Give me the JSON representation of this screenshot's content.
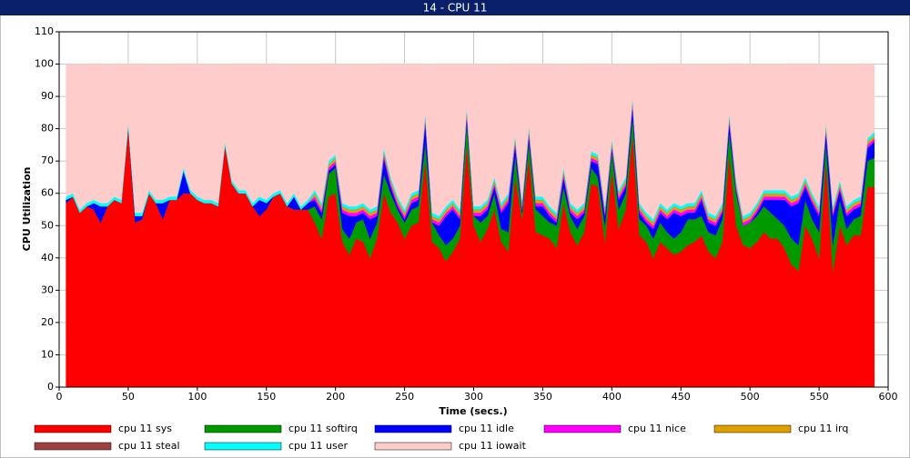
{
  "chart_data": {
    "type": "stacked_area",
    "title": "14 - CPU 11",
    "xlabel": "Time (secs.)",
    "ylabel": "CPU Utilization",
    "xlim": [
      0,
      600
    ],
    "ylim": [
      0,
      110
    ],
    "xticks": [
      0,
      50,
      100,
      150,
      200,
      250,
      300,
      350,
      400,
      450,
      500,
      550,
      600
    ],
    "yticks": [
      0,
      10,
      20,
      30,
      40,
      50,
      60,
      70,
      80,
      90,
      100,
      110
    ],
    "grid": true,
    "legend": "bottom",
    "x": [
      5,
      10,
      15,
      20,
      25,
      30,
      35,
      40,
      45,
      50,
      55,
      60,
      65,
      70,
      75,
      80,
      85,
      90,
      95,
      100,
      105,
      110,
      115,
      120,
      125,
      130,
      135,
      140,
      145,
      150,
      155,
      160,
      165,
      170,
      175,
      180,
      185,
      190,
      195,
      200,
      205,
      210,
      215,
      220,
      225,
      230,
      235,
      240,
      245,
      250,
      255,
      260,
      265,
      270,
      275,
      280,
      285,
      290,
      295,
      300,
      305,
      310,
      315,
      320,
      325,
      330,
      335,
      340,
      345,
      350,
      355,
      360,
      365,
      370,
      375,
      380,
      385,
      390,
      395,
      400,
      405,
      410,
      415,
      420,
      425,
      430,
      435,
      440,
      445,
      450,
      455,
      460,
      465,
      470,
      475,
      480,
      485,
      490,
      495,
      500,
      505,
      510,
      515,
      520,
      525,
      530,
      535,
      540,
      545,
      550,
      555,
      560,
      565,
      570,
      575,
      580,
      585,
      590
    ],
    "series": [
      {
        "name": "cpu 11 sys",
        "color": "#ff0000",
        "values": [
          57,
          59,
          54,
          56,
          55,
          51,
          56,
          58,
          57,
          80,
          51,
          52,
          60,
          57,
          52,
          58,
          58,
          60,
          60,
          58,
          57,
          57,
          56,
          75,
          63,
          60,
          60,
          56,
          53,
          55,
          59,
          60,
          56,
          55,
          55,
          55,
          51,
          46,
          59,
          60,
          45,
          41,
          46,
          45,
          40,
          46,
          60,
          54,
          51,
          46,
          50,
          51,
          70,
          45,
          43,
          39,
          42,
          46,
          75,
          50,
          45,
          49,
          55,
          45,
          42,
          65,
          52,
          71,
          48,
          47,
          46,
          43,
          57,
          48,
          44,
          48,
          63,
          62,
          45,
          67,
          49,
          55,
          78,
          47,
          45,
          40,
          45,
          43,
          41,
          42,
          44,
          45,
          47,
          42,
          40,
          45,
          72,
          50,
          44,
          43,
          45,
          48,
          46,
          46,
          43,
          38,
          36,
          50,
          46,
          40,
          70,
          36,
          50,
          44,
          47,
          47,
          62,
          62
        ]
      },
      {
        "name": "cpu 11 softirq",
        "color": "#009900",
        "values": [
          0,
          0,
          0,
          0,
          0,
          0,
          0,
          0,
          0,
          0,
          0,
          0,
          0,
          0,
          0,
          0,
          0,
          0,
          0,
          0,
          0,
          0,
          0,
          0,
          0,
          0,
          0,
          0,
          0,
          0,
          0,
          0,
          0,
          0,
          0,
          0,
          5,
          6,
          7,
          8,
          4,
          5,
          5,
          7,
          6,
          5,
          6,
          6,
          4,
          5,
          5,
          5,
          6,
          6,
          4,
          5,
          4,
          4,
          7,
          3,
          6,
          4,
          5,
          4,
          6,
          7,
          2,
          5,
          7,
          6,
          5,
          7,
          5,
          5,
          5,
          5,
          5,
          3,
          5,
          6,
          6,
          5,
          6,
          5,
          5,
          6,
          6,
          5,
          5,
          6,
          8,
          7,
          6,
          6,
          7,
          7,
          7,
          10,
          6,
          8,
          8,
          8,
          8,
          6,
          7,
          8,
          8,
          8,
          6,
          8,
          6,
          8,
          8,
          5,
          5,
          6,
          8,
          9
        ]
      },
      {
        "name": "cpu 11 idle",
        "color": "#0000ff",
        "values": [
          1,
          0,
          0,
          0,
          2,
          5,
          0,
          0,
          0,
          1,
          2,
          1,
          0,
          0,
          5,
          0,
          0,
          7,
          0,
          0,
          0,
          0,
          0,
          0,
          0,
          0,
          0,
          0,
          5,
          2,
          0,
          0,
          0,
          4,
          0,
          2,
          2,
          2,
          1,
          1,
          5,
          7,
          2,
          2,
          6,
          2,
          5,
          2,
          1,
          1,
          2,
          2,
          6,
          0,
          3,
          9,
          9,
          2,
          2,
          0,
          2,
          2,
          2,
          5,
          9,
          3,
          1,
          2,
          1,
          3,
          2,
          1,
          3,
          1,
          3,
          1,
          2,
          4,
          3,
          1,
          3,
          2,
          3,
          2,
          1,
          3,
          3,
          4,
          8,
          5,
          2,
          2,
          5,
          3,
          3,
          2,
          3,
          1,
          0,
          0,
          1,
          2,
          4,
          6,
          8,
          10,
          13,
          4,
          5,
          5,
          3,
          9,
          3,
          4,
          3,
          3,
          4,
          5
        ]
      },
      {
        "name": "cpu 11 nice",
        "color": "#ff00ff",
        "values": [
          0,
          0,
          0,
          0,
          0,
          0,
          0,
          0,
          0,
          0,
          0,
          0,
          0,
          0,
          0,
          0,
          0,
          0,
          0,
          0,
          0,
          0,
          0,
          0,
          0,
          0,
          0,
          0,
          0,
          0,
          0,
          0,
          0,
          0,
          0,
          0,
          1,
          1,
          1,
          1,
          1,
          1,
          1,
          1,
          1,
          1,
          1,
          1,
          1,
          1,
          1,
          1,
          1,
          1,
          1,
          1,
          1,
          1,
          1,
          1,
          1,
          1,
          1,
          1,
          1,
          1,
          1,
          1,
          1,
          1,
          1,
          1,
          1,
          1,
          1,
          1,
          1,
          1,
          1,
          1,
          1,
          1,
          1,
          1,
          1,
          1,
          1,
          1,
          1,
          1,
          1,
          1,
          1,
          1,
          1,
          1,
          1,
          1,
          1,
          1,
          1,
          1,
          1,
          1,
          1,
          1,
          1,
          1,
          1,
          1,
          1,
          1,
          1,
          1,
          1,
          1,
          1,
          1
        ]
      },
      {
        "name": "cpu 11 irq",
        "color": "#e0a000",
        "values": [
          0,
          0,
          0,
          0,
          0,
          0,
          0,
          0,
          0,
          0,
          0,
          0,
          0,
          0,
          0,
          0,
          0,
          0,
          0,
          0,
          0,
          0,
          0,
          0,
          0,
          0,
          0,
          0,
          0,
          0,
          0,
          0,
          0,
          0,
          0,
          0,
          1,
          1,
          1,
          1,
          1,
          1,
          1,
          1,
          1,
          1,
          1,
          1,
          1,
          1,
          1,
          1,
          1,
          1,
          1,
          1,
          1,
          1,
          1,
          1,
          1,
          1,
          1,
          1,
          1,
          1,
          1,
          1,
          1,
          1,
          1,
          1,
          1,
          1,
          1,
          1,
          1,
          1,
          1,
          1,
          1,
          1,
          1,
          1,
          1,
          1,
          1,
          1,
          1,
          1,
          1,
          1,
          1,
          1,
          1,
          1,
          1,
          1,
          1,
          1,
          1,
          1,
          1,
          1,
          1,
          1,
          1,
          1,
          1,
          1,
          1,
          1,
          1,
          1,
          1,
          1,
          1,
          1
        ]
      },
      {
        "name": "cpu 11 steal",
        "color": "#a04040",
        "values": [
          0,
          0,
          0,
          0,
          0,
          0,
          0,
          0,
          0,
          0,
          0,
          0,
          0,
          0,
          0,
          0,
          0,
          0,
          0,
          0,
          0,
          0,
          0,
          0,
          0,
          0,
          0,
          0,
          0,
          0,
          0,
          0,
          0,
          0,
          0,
          0,
          0,
          0,
          0,
          0,
          0,
          0,
          0,
          0,
          0,
          0,
          0,
          0,
          0,
          0,
          0,
          0,
          0,
          0,
          0,
          0,
          0,
          0,
          0,
          0,
          0,
          0,
          0,
          0,
          0,
          0,
          0,
          0,
          0,
          0,
          0,
          0,
          0,
          0,
          0,
          0,
          0,
          0,
          0,
          0,
          0,
          0,
          0,
          0,
          0,
          0,
          0,
          0,
          0,
          0,
          0,
          0,
          0,
          0,
          0,
          0,
          0,
          0,
          0,
          0,
          0,
          0,
          0,
          0,
          0,
          0,
          0,
          0,
          0,
          0,
          0,
          0,
          0,
          0,
          0,
          0,
          0,
          0
        ]
      },
      {
        "name": "cpu 11 user",
        "color": "#00ffff",
        "values": [
          1,
          1,
          1,
          1,
          1,
          1,
          1,
          1,
          1,
          1,
          1,
          1,
          1,
          1,
          1,
          1,
          1,
          1,
          1,
          1,
          1,
          1,
          1,
          1,
          1,
          1,
          1,
          1,
          1,
          1,
          1,
          1,
          1,
          1,
          1,
          1,
          1,
          1,
          1,
          1,
          1,
          1,
          1,
          1,
          1,
          1,
          1,
          1,
          1,
          1,
          1,
          1,
          1,
          1,
          1,
          1,
          1,
          1,
          1,
          1,
          1,
          1,
          1,
          1,
          1,
          1,
          1,
          1,
          1,
          1,
          1,
          1,
          1,
          1,
          1,
          1,
          1,
          1,
          1,
          1,
          1,
          1,
          1,
          1,
          1,
          1,
          1,
          1,
          1,
          1,
          1,
          1,
          1,
          1,
          1,
          1,
          1,
          1,
          1,
          1,
          1,
          1,
          1,
          1,
          1,
          1,
          1,
          1,
          1,
          1,
          1,
          1,
          1,
          1,
          1,
          1,
          1,
          1
        ]
      },
      {
        "name": "cpu 11 iowait",
        "color": "#ffcccc",
        "values": [
          41,
          40,
          45,
          43,
          42,
          43,
          43,
          41,
          42,
          18,
          46,
          46,
          39,
          42,
          42,
          41,
          41,
          32,
          39,
          41,
          42,
          42,
          43,
          24,
          36,
          39,
          39,
          43,
          41,
          42,
          40,
          39,
          43,
          40,
          44,
          42,
          39,
          43,
          30,
          28,
          43,
          44,
          44,
          43,
          45,
          44,
          26,
          35,
          41,
          45,
          40,
          39,
          15,
          46,
          47,
          44,
          42,
          45,
          13,
          44,
          44,
          42,
          35,
          43,
          40,
          22,
          42,
          19,
          41,
          41,
          44,
          46,
          32,
          43,
          45,
          43,
          27,
          28,
          44,
          23,
          39,
          35,
          10,
          43,
          46,
          48,
          43,
          45,
          43,
          44,
          43,
          43,
          39,
          46,
          47,
          43,
          15,
          36,
          47,
          46,
          43,
          39,
          39,
          39,
          39,
          41,
          40,
          35,
          40,
          44,
          18,
          44,
          36,
          44,
          42,
          41,
          23,
          21
        ]
      }
    ]
  }
}
